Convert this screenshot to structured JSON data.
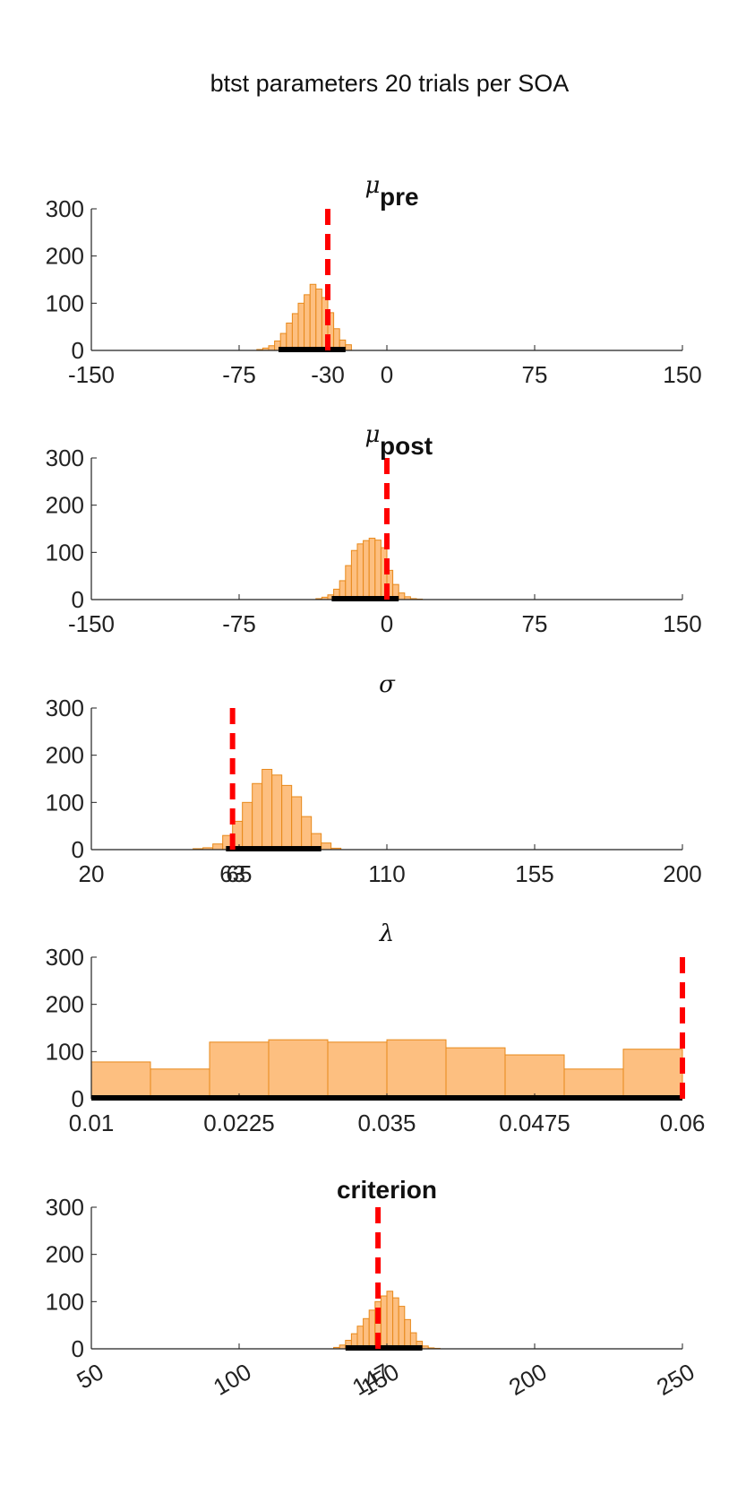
{
  "figure_title": "btst parameters 20 trials per SOA",
  "colors": {
    "bar_fill": "#FDBF80",
    "bar_edge": "#E8891A",
    "truth_line": "#FF0000",
    "ci_line": "#000000",
    "axis": "#222222"
  },
  "chart_data": [
    {
      "type": "bar",
      "title_symbol": "μ",
      "title_subscript": "pre",
      "ylim": [
        0,
        300
      ],
      "yticks": [
        "0",
        "100",
        "200",
        "300"
      ],
      "xlim": [
        -150,
        150
      ],
      "xticks": [
        -150,
        -75,
        -30,
        0,
        75,
        150
      ],
      "xtick_labels": [
        "-150",
        "-75",
        "-30",
        "0",
        "75",
        "150"
      ],
      "bin_edges": [
        -66,
        -63,
        -60,
        -57,
        -54,
        -51,
        -48,
        -45,
        -42,
        -39,
        -36,
        -33,
        -30,
        -27,
        -24,
        -21,
        -18
      ],
      "counts": [
        2,
        5,
        10,
        20,
        36,
        58,
        78,
        100,
        118,
        140,
        130,
        112,
        80,
        46,
        22,
        12,
        4
      ],
      "true_value": -30,
      "ci": [
        -55,
        -21
      ]
    },
    {
      "type": "bar",
      "title_symbol": "μ",
      "title_subscript": "post",
      "ylim": [
        0,
        300
      ],
      "yticks": [
        "0",
        "100",
        "200",
        "300"
      ],
      "xlim": [
        -150,
        150
      ],
      "xticks": [
        -150,
        -75,
        0,
        75,
        150
      ],
      "xtick_labels": [
        "-150",
        "-75",
        "0",
        "75",
        "150"
      ],
      "bin_edges": [
        -36,
        -33,
        -30,
        -27,
        -24,
        -21,
        -18,
        -15,
        -12,
        -9,
        -6,
        -3,
        0,
        3,
        6,
        9,
        12,
        15,
        18
      ],
      "counts": [
        2,
        5,
        10,
        22,
        40,
        72,
        104,
        118,
        125,
        130,
        126,
        110,
        62,
        32,
        14,
        6,
        2,
        1
      ],
      "true_value": 0,
      "ci": [
        -28,
        6
      ]
    },
    {
      "type": "bar",
      "title_symbol": "σ",
      "title_subscript": "",
      "ylim": [
        0,
        300
      ],
      "yticks": [
        "0",
        "100",
        "200",
        "300"
      ],
      "xlim": [
        20,
        200
      ],
      "xticks": [
        20,
        63,
        65,
        110,
        155,
        200
      ],
      "xtick_labels": [
        "20",
        "63",
        "65",
        "110",
        "155",
        "200"
      ],
      "bin_edges": [
        51,
        54,
        57,
        60,
        63,
        66,
        69,
        72,
        75,
        78,
        81,
        84,
        87,
        90,
        93,
        96
      ],
      "counts": [
        2,
        4,
        12,
        30,
        60,
        100,
        140,
        170,
        158,
        136,
        112,
        70,
        34,
        14,
        3
      ],
      "true_value": 63,
      "ci": [
        61,
        90
      ]
    },
    {
      "type": "bar",
      "title_symbol": "λ",
      "title_subscript": "",
      "ylim": [
        0,
        300
      ],
      "yticks": [
        "0",
        "100",
        "200",
        "300"
      ],
      "xlim": [
        0.01,
        0.06
      ],
      "xticks": [
        0.01,
        0.0225,
        0.035,
        0.0475,
        0.06
      ],
      "xtick_labels": [
        "0.01",
        "0.0225",
        "0.035",
        "0.0475",
        "0.06"
      ],
      "bin_edges": [
        0.01,
        0.015,
        0.02,
        0.025,
        0.03,
        0.035,
        0.04,
        0.045,
        0.05,
        0.055,
        0.06
      ],
      "counts": [
        78,
        63,
        120,
        125,
        120,
        125,
        108,
        93,
        63,
        105
      ],
      "true_value": 0.06,
      "ci": [
        0.01,
        0.06
      ]
    },
    {
      "type": "bar",
      "title_symbol": "",
      "title_subscript": "",
      "title_text": "criterion",
      "ylim": [
        0,
        300
      ],
      "yticks": [
        "0",
        "100",
        "200",
        "300"
      ],
      "xlim": [
        50,
        250
      ],
      "xticks": [
        50,
        100,
        147,
        150,
        200,
        250
      ],
      "xtick_labels": [
        "50",
        "100",
        "147",
        "150",
        "200",
        "250"
      ],
      "bin_edges": [
        132,
        134,
        136,
        138,
        140,
        142,
        144,
        146,
        148,
        150,
        152,
        154,
        156,
        158,
        160,
        162,
        164,
        166,
        168
      ],
      "counts": [
        3,
        8,
        18,
        32,
        48,
        64,
        82,
        100,
        112,
        122,
        108,
        90,
        62,
        34,
        16,
        6,
        2,
        1
      ],
      "true_value": 147,
      "ci": [
        136,
        162
      ]
    }
  ]
}
